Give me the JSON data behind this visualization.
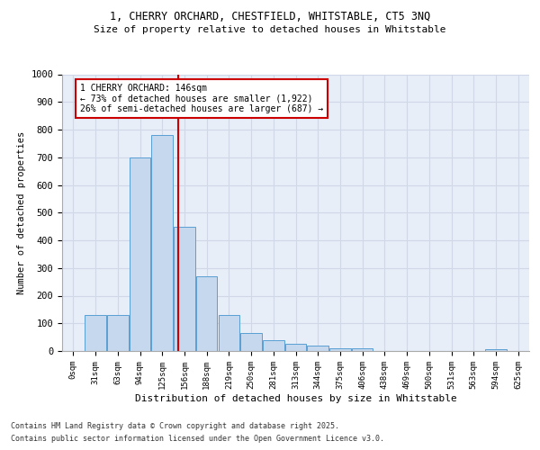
{
  "title_line1": "1, CHERRY ORCHARD, CHESTFIELD, WHITSTABLE, CT5 3NQ",
  "title_line2": "Size of property relative to detached houses in Whitstable",
  "xlabel": "Distribution of detached houses by size in Whitstable",
  "ylabel": "Number of detached properties",
  "bar_labels": [
    "0sqm",
    "31sqm",
    "63sqm",
    "94sqm",
    "125sqm",
    "156sqm",
    "188sqm",
    "219sqm",
    "250sqm",
    "281sqm",
    "313sqm",
    "344sqm",
    "375sqm",
    "406sqm",
    "438sqm",
    "469sqm",
    "500sqm",
    "531sqm",
    "563sqm",
    "594sqm",
    "625sqm"
  ],
  "bar_values": [
    0,
    130,
    130,
    700,
    780,
    450,
    270,
    130,
    65,
    40,
    25,
    20,
    10,
    10,
    0,
    0,
    0,
    0,
    0,
    5,
    0
  ],
  "bar_color": "#c5d8ed",
  "bar_edge_color": "#5a9fd4",
  "grid_color": "#d0d8e8",
  "background_color": "#e8eef8",
  "vline_x": 4.73,
  "vline_color": "#cc0000",
  "annotation_text": "1 CHERRY ORCHARD: 146sqm\n← 73% of detached houses are smaller (1,922)\n26% of semi-detached houses are larger (687) →",
  "annotation_box_color": "#cc0000",
  "ylim": [
    0,
    1000
  ],
  "yticks": [
    0,
    100,
    200,
    300,
    400,
    500,
    600,
    700,
    800,
    900,
    1000
  ],
  "footer_line1": "Contains HM Land Registry data © Crown copyright and database right 2025.",
  "footer_line2": "Contains public sector information licensed under the Open Government Licence v3.0."
}
